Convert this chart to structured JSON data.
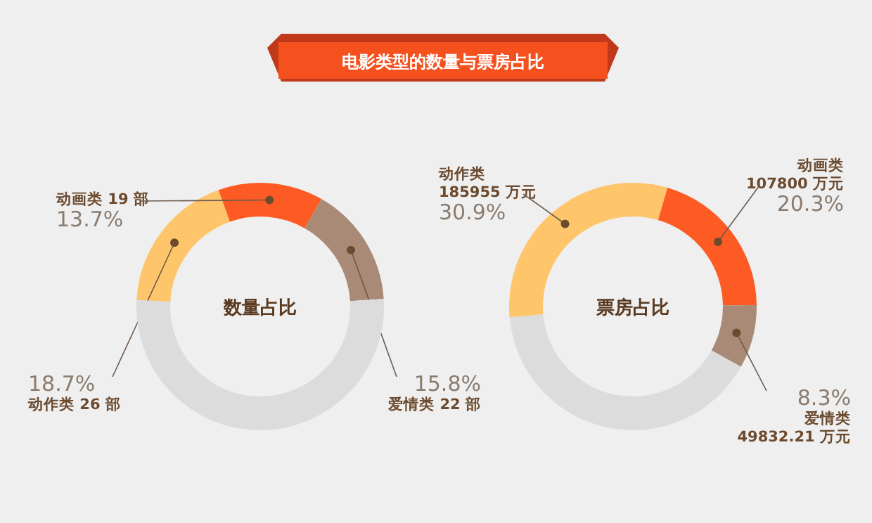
{
  "chart_data": [
    {
      "type": "donut",
      "title": "数量占比",
      "annotations": [
        "电影类型的数量与票房占比"
      ],
      "categories": [
        "动作类 26 部",
        "动画类 19 部",
        "爱情类 22 部",
        null
      ],
      "values": [
        18.7,
        13.7,
        15.8,
        51.8
      ],
      "value_labels": [
        "18.7%",
        "13.7%",
        "15.8%",
        null
      ],
      "colors": [
        "#fec56b",
        "#fd5a24",
        "#a88a77",
        "#dcdcdc"
      ]
    },
    {
      "type": "donut",
      "title": "票房占比",
      "categories": [
        "动作类 185955 万元",
        "动画类 107800 万元",
        "爱情类 49832.21 万元",
        null
      ],
      "values": [
        30.9,
        20.3,
        8.3,
        40.5
      ],
      "value_labels": [
        "30.9%",
        "20.3%",
        "8.3%",
        null
      ],
      "colors": [
        "#fec56b",
        "#fd5a24",
        "#a88a77",
        "#dcdcdc"
      ]
    }
  ]
}
